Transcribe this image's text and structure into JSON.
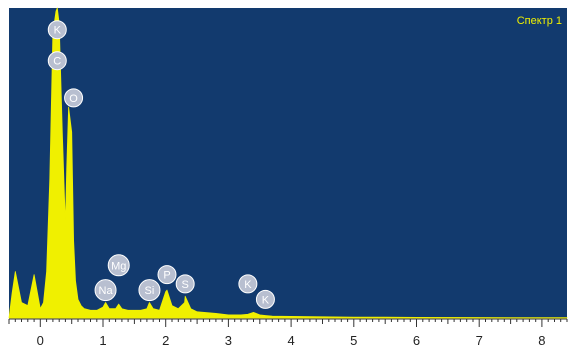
{
  "chart_data": {
    "type": "area",
    "legend": {
      "text": "Спектр 1",
      "placement": "top-right"
    },
    "xlim": [
      -0.5,
      8.4
    ],
    "ylim": [
      0,
      100
    ],
    "x_ticks": [
      {
        "value": 0,
        "label": "0"
      },
      {
        "value": 1,
        "label": "1"
      },
      {
        "value": 2,
        "label": "2"
      },
      {
        "value": 3,
        "label": "3"
      },
      {
        "value": 4,
        "label": "4"
      },
      {
        "value": 5,
        "label": "5"
      },
      {
        "value": 6,
        "label": "6"
      },
      {
        "value": 7,
        "label": "7"
      },
      {
        "value": 8,
        "label": "8"
      }
    ],
    "spectrum": {
      "x": [
        -0.5,
        -0.45,
        -0.4,
        -0.3,
        -0.2,
        -0.1,
        0,
        0.05,
        0.1,
        0.15,
        0.2,
        0.25,
        0.27,
        0.3,
        0.35,
        0.4,
        0.42,
        0.45,
        0.5,
        0.53,
        0.56,
        0.6,
        0.65,
        0.7,
        0.8,
        0.9,
        1.0,
        1.04,
        1.1,
        1.2,
        1.25,
        1.3,
        1.4,
        1.5,
        1.6,
        1.7,
        1.74,
        1.8,
        1.9,
        2.0,
        2.02,
        2.1,
        2.2,
        2.3,
        2.31,
        2.4,
        2.5,
        2.8,
        3.0,
        3.2,
        3.31,
        3.4,
        3.5,
        3.59,
        3.7,
        4.0,
        4.5,
        5.0,
        5.5,
        6.0,
        7.0,
        8.0,
        8.4
      ],
      "y": [
        0,
        8,
        15,
        5,
        4,
        14,
        3,
        5,
        15,
        45,
        92,
        99,
        100,
        95,
        60,
        30,
        48,
        68,
        60,
        25,
        12,
        6,
        4,
        3,
        2.5,
        2.5,
        3.5,
        5,
        3,
        3,
        4.5,
        3,
        2.5,
        2.5,
        2.5,
        3,
        5,
        3,
        2.5,
        8.5,
        9,
        4,
        3,
        5,
        7,
        3,
        2,
        1.5,
        1,
        1,
        1.2,
        1.8,
        1,
        0.8,
        0.6,
        0.5,
        0.4,
        0.3,
        0.25,
        0.2,
        0.15,
        0.1,
        0.1
      ]
    },
    "peak_labels": [
      {
        "label": "K",
        "x": 0.27,
        "y": 93
      },
      {
        "label": "C",
        "x": 0.27,
        "y": 83
      },
      {
        "label": "O",
        "x": 0.53,
        "y": 71
      },
      {
        "label": "Na",
        "x": 1.04,
        "y": 9
      },
      {
        "label": "Mg",
        "x": 1.25,
        "y": 17
      },
      {
        "label": "Si",
        "x": 1.74,
        "y": 9
      },
      {
        "label": "P",
        "x": 2.02,
        "y": 14
      },
      {
        "label": "S",
        "x": 2.31,
        "y": 11
      },
      {
        "label": "K",
        "x": 3.31,
        "y": 11
      },
      {
        "label": "K",
        "x": 3.59,
        "y": 6
      }
    ],
    "colors": {
      "background": "#123a6e",
      "spectrum": "#f0f000",
      "legend": "#f0f000",
      "label_fill": "#b8bfd0",
      "label_stroke": "#ffffff",
      "axis": "#333333"
    }
  }
}
